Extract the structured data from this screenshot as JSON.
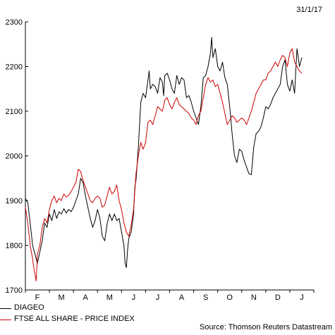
{
  "date_label": "31/1/17",
  "source": "Source: Thomson Reuters Datastream",
  "chart_data": {
    "type": "line",
    "title": "",
    "xlabel": "",
    "ylabel": "",
    "ylim": [
      1700,
      2300
    ],
    "yticks": [
      1700,
      1800,
      1900,
      2000,
      2100,
      2200,
      2300
    ],
    "xlim": [
      0,
      12
    ],
    "month_labels": [
      "F",
      "M",
      "A",
      "M",
      "J",
      "J",
      "A",
      "S",
      "O",
      "N",
      "D",
      "J"
    ],
    "grid": false,
    "legend_position": "bottom-left",
    "series": [
      {
        "name": "DIAGEO",
        "color": "#000000",
        "points": [
          [
            0.0,
            1905
          ],
          [
            0.1,
            1895
          ],
          [
            0.2,
            1850
          ],
          [
            0.3,
            1800
          ],
          [
            0.4,
            1780
          ],
          [
            0.5,
            1760
          ],
          [
            0.6,
            1785
          ],
          [
            0.7,
            1810
          ],
          [
            0.8,
            1850
          ],
          [
            0.9,
            1840
          ],
          [
            1.0,
            1870
          ],
          [
            1.1,
            1855
          ],
          [
            1.2,
            1880
          ],
          [
            1.3,
            1860
          ],
          [
            1.4,
            1875
          ],
          [
            1.5,
            1870
          ],
          [
            1.6,
            1882
          ],
          [
            1.7,
            1872
          ],
          [
            1.8,
            1880
          ],
          [
            1.9,
            1875
          ],
          [
            2.0,
            1885
          ],
          [
            2.1,
            1900
          ],
          [
            2.2,
            1915
          ],
          [
            2.3,
            1950
          ],
          [
            2.4,
            1940
          ],
          [
            2.5,
            1910
          ],
          [
            2.6,
            1885
          ],
          [
            2.7,
            1860
          ],
          [
            2.8,
            1840
          ],
          [
            2.9,
            1855
          ],
          [
            3.0,
            1880
          ],
          [
            3.1,
            1860
          ],
          [
            3.2,
            1820
          ],
          [
            3.3,
            1810
          ],
          [
            3.4,
            1848
          ],
          [
            3.5,
            1870
          ],
          [
            3.6,
            1855
          ],
          [
            3.7,
            1870
          ],
          [
            3.8,
            1855
          ],
          [
            3.9,
            1860
          ],
          [
            4.0,
            1830
          ],
          [
            4.1,
            1800
          ],
          [
            4.15,
            1760
          ],
          [
            4.2,
            1750
          ],
          [
            4.25,
            1790
          ],
          [
            4.3,
            1815
          ],
          [
            4.4,
            1830
          ],
          [
            4.5,
            1870
          ],
          [
            4.55,
            1930
          ],
          [
            4.6,
            1945
          ],
          [
            4.7,
            2020
          ],
          [
            4.8,
            2120
          ],
          [
            4.9,
            2140
          ],
          [
            5.0,
            2130
          ],
          [
            5.1,
            2170
          ],
          [
            5.15,
            2190
          ],
          [
            5.2,
            2150
          ],
          [
            5.3,
            2160
          ],
          [
            5.4,
            2155
          ],
          [
            5.5,
            2140
          ],
          [
            5.6,
            2175
          ],
          [
            5.7,
            2165
          ],
          [
            5.75,
            2135
          ],
          [
            5.8,
            2180
          ],
          [
            5.9,
            2185
          ],
          [
            6.0,
            2170
          ],
          [
            6.1,
            2150
          ],
          [
            6.2,
            2140
          ],
          [
            6.3,
            2180
          ],
          [
            6.4,
            2160
          ],
          [
            6.5,
            2175
          ],
          [
            6.6,
            2170
          ],
          [
            6.7,
            2130
          ],
          [
            6.8,
            2135
          ],
          [
            6.9,
            2120
          ],
          [
            7.0,
            2100
          ],
          [
            7.1,
            2085
          ],
          [
            7.2,
            2070
          ],
          [
            7.3,
            2110
          ],
          [
            7.4,
            2175
          ],
          [
            7.5,
            2180
          ],
          [
            7.6,
            2200
          ],
          [
            7.7,
            2230
          ],
          [
            7.75,
            2265
          ],
          [
            7.8,
            2220
          ],
          [
            7.9,
            2240
          ],
          [
            8.0,
            2200
          ],
          [
            8.1,
            2190
          ],
          [
            8.2,
            2210
          ],
          [
            8.3,
            2175
          ],
          [
            8.4,
            2160
          ],
          [
            8.5,
            2110
          ],
          [
            8.6,
            2050
          ],
          [
            8.7,
            2000
          ],
          [
            8.8,
            1985
          ],
          [
            8.9,
            2015
          ],
          [
            9.0,
            2010
          ],
          [
            9.1,
            1990
          ],
          [
            9.2,
            1975
          ],
          [
            9.3,
            1960
          ],
          [
            9.4,
            1958
          ],
          [
            9.5,
            2020
          ],
          [
            9.6,
            2050
          ],
          [
            9.7,
            2055
          ],
          [
            9.8,
            2065
          ],
          [
            9.9,
            2085
          ],
          [
            10.0,
            2110
          ],
          [
            10.1,
            2105
          ],
          [
            10.2,
            2115
          ],
          [
            10.3,
            2130
          ],
          [
            10.4,
            2140
          ],
          [
            10.5,
            2150
          ],
          [
            10.6,
            2160
          ],
          [
            10.7,
            2200
          ],
          [
            10.8,
            2215
          ],
          [
            10.9,
            2160
          ],
          [
            11.0,
            2145
          ],
          [
            11.1,
            2170
          ],
          [
            11.2,
            2140
          ],
          [
            11.3,
            2240
          ],
          [
            11.4,
            2200
          ],
          [
            11.5,
            2220
          ]
        ]
      },
      {
        "name": "FTSE ALL SHARE - PRICE INDEX",
        "color": "#cc0000",
        "points": [
          [
            0.0,
            1885
          ],
          [
            0.1,
            1850
          ],
          [
            0.2,
            1800
          ],
          [
            0.3,
            1770
          ],
          [
            0.35,
            1750
          ],
          [
            0.4,
            1735
          ],
          [
            0.45,
            1720
          ],
          [
            0.5,
            1780
          ],
          [
            0.6,
            1800
          ],
          [
            0.7,
            1840
          ],
          [
            0.8,
            1860
          ],
          [
            0.9,
            1850
          ],
          [
            1.0,
            1880
          ],
          [
            1.1,
            1900
          ],
          [
            1.2,
            1910
          ],
          [
            1.3,
            1895
          ],
          [
            1.4,
            1905
          ],
          [
            1.5,
            1900
          ],
          [
            1.6,
            1915
          ],
          [
            1.7,
            1908
          ],
          [
            1.8,
            1912
          ],
          [
            1.9,
            1920
          ],
          [
            2.0,
            1930
          ],
          [
            2.1,
            1940
          ],
          [
            2.2,
            1970
          ],
          [
            2.3,
            1965
          ],
          [
            2.4,
            1945
          ],
          [
            2.5,
            1930
          ],
          [
            2.6,
            1915
          ],
          [
            2.7,
            1900
          ],
          [
            2.8,
            1895
          ],
          [
            2.9,
            1905
          ],
          [
            3.0,
            1910
          ],
          [
            3.1,
            1905
          ],
          [
            3.2,
            1885
          ],
          [
            3.3,
            1890
          ],
          [
            3.4,
            1910
          ],
          [
            3.5,
            1930
          ],
          [
            3.6,
            1915
          ],
          [
            3.7,
            1920
          ],
          [
            3.8,
            1935
          ],
          [
            3.9,
            1900
          ],
          [
            4.0,
            1880
          ],
          [
            4.1,
            1850
          ],
          [
            4.2,
            1830
          ],
          [
            4.3,
            1820
          ],
          [
            4.4,
            1845
          ],
          [
            4.5,
            1880
          ],
          [
            4.6,
            1960
          ],
          [
            4.7,
            2000
          ],
          [
            4.8,
            2030
          ],
          [
            4.9,
            2015
          ],
          [
            5.0,
            2030
          ],
          [
            5.1,
            2075
          ],
          [
            5.2,
            2080
          ],
          [
            5.3,
            2070
          ],
          [
            5.4,
            2090
          ],
          [
            5.5,
            2110
          ],
          [
            5.6,
            2105
          ],
          [
            5.7,
            2100
          ],
          [
            5.8,
            2125
          ],
          [
            5.9,
            2130
          ],
          [
            6.0,
            2115
          ],
          [
            6.1,
            2105
          ],
          [
            6.2,
            2120
          ],
          [
            6.3,
            2130
          ],
          [
            6.4,
            2115
          ],
          [
            6.5,
            2110
          ],
          [
            6.6,
            2105
          ],
          [
            6.7,
            2100
          ],
          [
            6.8,
            2095
          ],
          [
            6.9,
            2085
          ],
          [
            7.0,
            2080
          ],
          [
            7.1,
            2070
          ],
          [
            7.2,
            2090
          ],
          [
            7.3,
            2100
          ],
          [
            7.4,
            2130
          ],
          [
            7.5,
            2160
          ],
          [
            7.6,
            2175
          ],
          [
            7.7,
            2165
          ],
          [
            7.8,
            2170
          ],
          [
            7.9,
            2155
          ],
          [
            8.0,
            2160
          ],
          [
            8.1,
            2140
          ],
          [
            8.2,
            2120
          ],
          [
            8.3,
            2095
          ],
          [
            8.4,
            2070
          ],
          [
            8.5,
            2080
          ],
          [
            8.6,
            2090
          ],
          [
            8.7,
            2085
          ],
          [
            8.8,
            2075
          ],
          [
            8.9,
            2080
          ],
          [
            9.0,
            2085
          ],
          [
            9.1,
            2080
          ],
          [
            9.2,
            2070
          ],
          [
            9.3,
            2085
          ],
          [
            9.4,
            2100
          ],
          [
            9.5,
            2120
          ],
          [
            9.6,
            2140
          ],
          [
            9.7,
            2150
          ],
          [
            9.8,
            2160
          ],
          [
            9.9,
            2170
          ],
          [
            10.0,
            2170
          ],
          [
            10.1,
            2185
          ],
          [
            10.2,
            2190
          ],
          [
            10.3,
            2200
          ],
          [
            10.4,
            2210
          ],
          [
            10.5,
            2200
          ],
          [
            10.6,
            2215
          ],
          [
            10.7,
            2225
          ],
          [
            10.8,
            2220
          ],
          [
            10.9,
            2200
          ],
          [
            11.0,
            2230
          ],
          [
            11.1,
            2240
          ],
          [
            11.2,
            2210
          ],
          [
            11.3,
            2200
          ],
          [
            11.4,
            2190
          ],
          [
            11.5,
            2185
          ]
        ]
      }
    ]
  }
}
